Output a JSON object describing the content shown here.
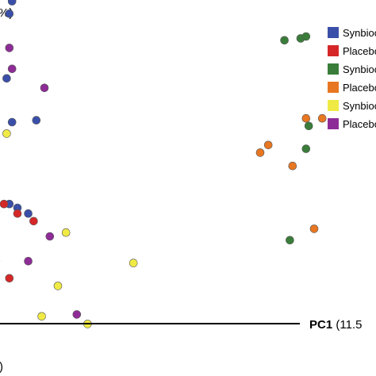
{
  "chart_data": {
    "type": "scatter",
    "xlabel": {
      "bold": "PC1",
      "rest": " (11.5"
    },
    "ylabel_fragment": "%)",
    "bottom_fragment": ")",
    "legend_placement": "top-right",
    "series": [
      {
        "name": "Synbioc",
        "color": "#3a4fa8",
        "points": [
          [
            -87,
            98.5
          ],
          [
            -88,
            92
          ],
          [
            -96,
            60
          ],
          [
            -89,
            58
          ],
          [
            -78,
            36
          ],
          [
            -87,
            35
          ],
          [
            -88,
            -8
          ],
          [
            -85,
            -10
          ],
          [
            -81,
            -13
          ],
          [
            -93,
            -12
          ],
          [
            -96,
            -14
          ],
          [
            -100,
            -12
          ]
        ]
      },
      {
        "name": "Placebo",
        "color": "#d62728",
        "points": [
          [
            -90,
            -8
          ],
          [
            -85,
            -13
          ],
          [
            -79,
            -17
          ],
          [
            -98,
            -31
          ],
          [
            -93,
            -38
          ],
          [
            -102,
            -37
          ],
          [
            -88,
            -47
          ]
        ]
      },
      {
        "name": "Synbioc",
        "color": "#3a7d3a",
        "points": [
          [
            20,
            79
          ],
          [
            22,
            80
          ],
          [
            14,
            78
          ],
          [
            23,
            33
          ],
          [
            22,
            21
          ],
          [
            16,
            -27
          ]
        ]
      },
      {
        "name": "Placebo",
        "color": "#e87722",
        "points": [
          [
            22,
            37
          ],
          [
            28,
            37
          ],
          [
            5,
            19
          ],
          [
            8,
            23
          ],
          [
            17,
            12
          ],
          [
            25,
            -21
          ]
        ]
      },
      {
        "name": "Synbioc",
        "color": "#f0ea45",
        "points": [
          [
            -100,
            61
          ],
          [
            -95,
            55
          ],
          [
            -89,
            29
          ],
          [
            -67,
            -23
          ],
          [
            -42,
            -39
          ],
          [
            -70,
            -51
          ],
          [
            -76,
            -67
          ],
          [
            -59,
            -71
          ]
        ]
      },
      {
        "name": "Placebo",
        "color": "#8e2c97",
        "points": [
          [
            -88,
            74
          ],
          [
            -87,
            63
          ],
          [
            -75,
            53
          ],
          [
            -73,
            -25
          ],
          [
            -81,
            -38
          ],
          [
            -63,
            -66
          ]
        ]
      }
    ]
  }
}
